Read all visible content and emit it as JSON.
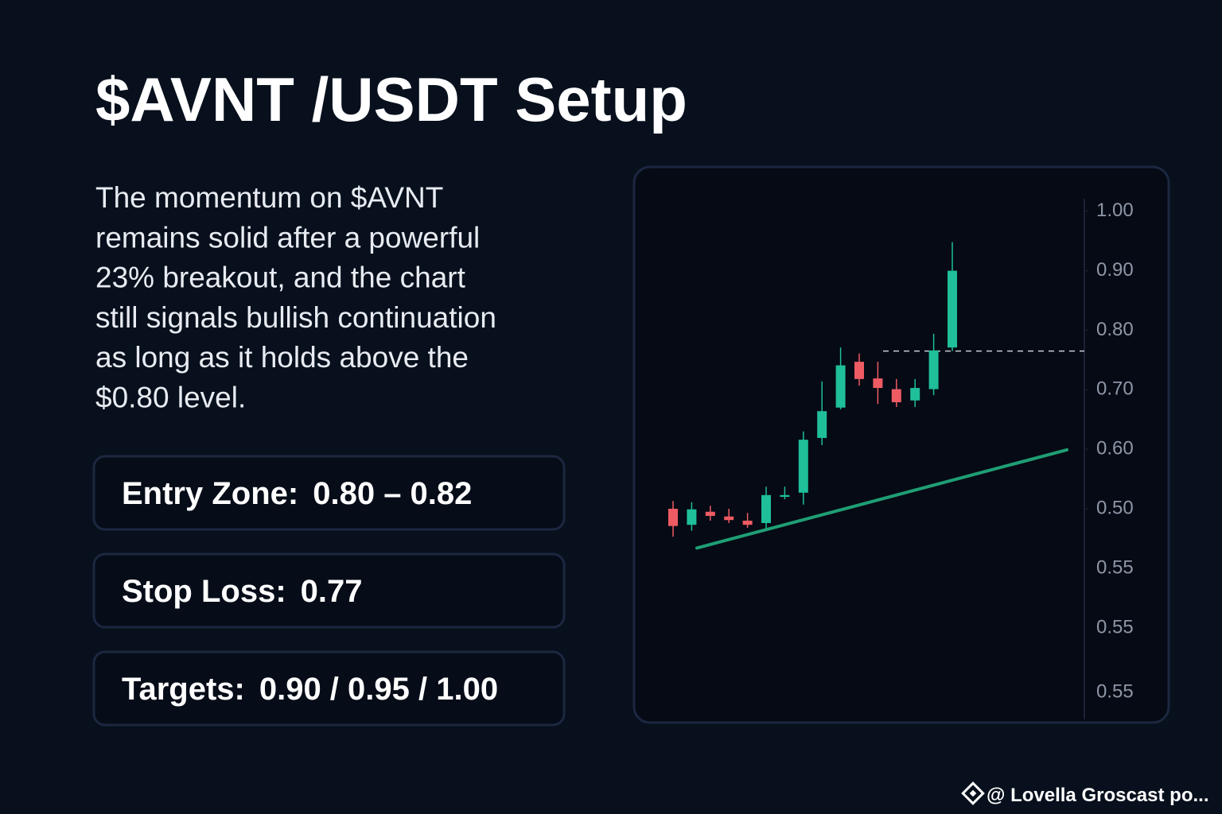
{
  "header": {
    "title": "$AVNT /USDT Setup"
  },
  "description": [
    "The momentum on $AVNT",
    "remains solid after a powerful",
    "23% breakout, and the chart",
    "still signals bullish continuation",
    "as long as it holds above the",
    "$0.80 level."
  ],
  "cards": [
    {
      "label": "Entry Zone:",
      "value": "0.80 – 0.82"
    },
    {
      "label": "Stop Loss:",
      "value": "0.77"
    },
    {
      "label": "Targets:",
      "value": "0.90 / 0.95 / 1.00"
    }
  ],
  "chart_data": {
    "type": "candlestick",
    "up_color": "#1fbf9a",
    "down_color": "#ef5b63",
    "open": [
      0.5,
      0.473,
      0.495,
      0.487,
      0.48,
      0.476,
      0.52,
      0.527,
      0.619,
      0.67,
      0.747,
      0.719,
      0.701,
      0.682,
      0.701,
      0.771
    ],
    "high": [
      0.513,
      0.511,
      0.505,
      0.5,
      0.493,
      0.537,
      0.537,
      0.63,
      0.714,
      0.771,
      0.761,
      0.747,
      0.718,
      0.718,
      0.794,
      0.948
    ],
    "low": [
      0.453,
      0.463,
      0.48,
      0.476,
      0.468,
      0.467,
      0.516,
      0.507,
      0.607,
      0.667,
      0.707,
      0.676,
      0.671,
      0.671,
      0.691,
      0.765
    ],
    "close": [
      0.471,
      0.499,
      0.488,
      0.481,
      0.473,
      0.523,
      0.523,
      0.616,
      0.664,
      0.741,
      0.718,
      0.703,
      0.679,
      0.703,
      0.766,
      0.9
    ],
    "level_line": 0.765,
    "trendline": {
      "start": 0.434,
      "end": 0.599,
      "color": "#1f9e74"
    },
    "ylim": [
      0.146,
      1.021
    ],
    "yticks": [
      {
        "value": 1,
        "label": "1.00"
      },
      {
        "value": 0.9,
        "label": "0.90"
      },
      {
        "value": 0.8,
        "label": "0.80"
      },
      {
        "value": 0.7,
        "label": "0.70"
      },
      {
        "value": 0.6,
        "label": "0.60"
      },
      {
        "value": 0.5,
        "label": "0.50"
      }
    ],
    "extra_axis_labels": [
      "0.55",
      "0.55",
      "0.55"
    ]
  },
  "footer": {
    "credit": "@ Lovella Groscast po..."
  }
}
